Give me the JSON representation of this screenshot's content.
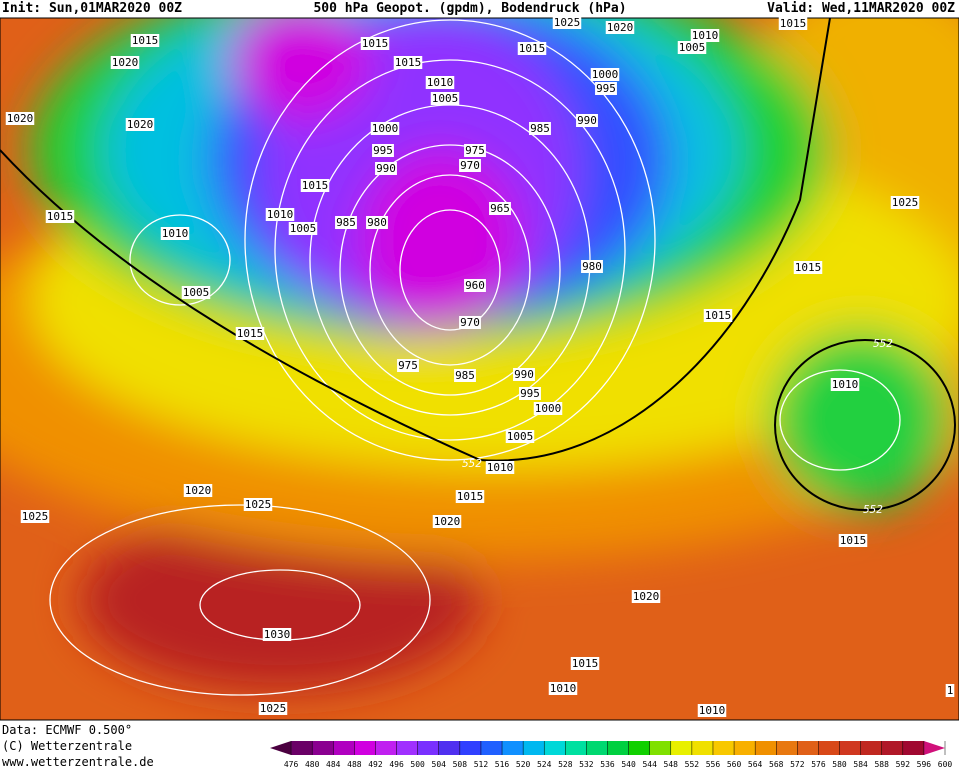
{
  "header": {
    "init": "Init: Sun,01MAR2020 00Z",
    "title": "500 hPa Geopot. (gpdm), Bodendruck (hPa)",
    "valid": "Valid: Wed,11MAR2020 00Z"
  },
  "footer": {
    "data": "Data: ECMWF  0.500°",
    "copyright": "(C) Wetterzentrale",
    "url": "www.wetterzentrale.de"
  },
  "isobar_labels": [
    "1015",
    "1020",
    "1020",
    "1020",
    "1015",
    "1010",
    "1005",
    "1015",
    "1015",
    "1015",
    "1010",
    "1005",
    "1000",
    "995",
    "990",
    "975",
    "970",
    "985",
    "990",
    "1015",
    "1010",
    "1005",
    "985",
    "980",
    "965",
    "960",
    "970",
    "980",
    "975",
    "985",
    "990",
    "995",
    "1000",
    "1005",
    "1010",
    "1015",
    "1020",
    "1025",
    "1025",
    "1020",
    "1030",
    "1025",
    "1015",
    "1015",
    "1025",
    "1010",
    "1015",
    "1020",
    "1015",
    "1010",
    "1010",
    "1025",
    "1020",
    "1015",
    "1010",
    "1005",
    "1000",
    "995",
    "1015",
    "1"
  ],
  "contour_labels": [
    "552",
    "552",
    "552"
  ],
  "colorbar": {
    "ticks": [
      476,
      480,
      484,
      488,
      492,
      496,
      500,
      504,
      508,
      512,
      516,
      520,
      524,
      528,
      532,
      536,
      540,
      544,
      548,
      552,
      556,
      560,
      564,
      568,
      572,
      576,
      580,
      584,
      588,
      592,
      596,
      600
    ],
    "colors": [
      "#4b0040",
      "#6a0066",
      "#8a0090",
      "#b000c0",
      "#d000e0",
      "#c020f0",
      "#a030ff",
      "#7a30ff",
      "#5030f0",
      "#3040ff",
      "#2060ff",
      "#1090ff",
      "#00b8f0",
      "#00d8d8",
      "#00e0a0",
      "#00d870",
      "#00d040",
      "#10d000",
      "#80e000",
      "#e8f000",
      "#f0e000",
      "#f8c800",
      "#f8b000",
      "#f09000",
      "#e87810",
      "#e06018",
      "#d84818",
      "#d03820",
      "#c02820",
      "#b01828",
      "#a00830",
      "#d0107a"
    ]
  }
}
